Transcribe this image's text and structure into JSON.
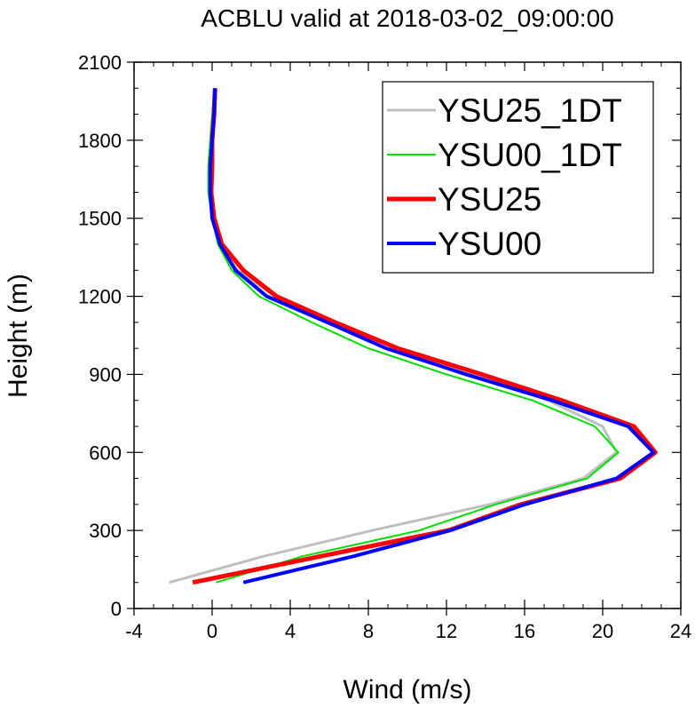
{
  "chart_data": {
    "type": "line",
    "title": "ACBLU valid at 2018-03-02_09:00:00",
    "xlabel": "Wind (m/s)",
    "ylabel": "Height (m)",
    "xlim": [
      -4,
      24
    ],
    "ylim": [
      0,
      2100
    ],
    "xticks": [
      -4,
      0,
      4,
      8,
      12,
      16,
      20,
      24
    ],
    "yticks": [
      0,
      300,
      600,
      900,
      1200,
      1500,
      1800,
      2100
    ],
    "xtick_labels": [
      "-4",
      "0",
      "4",
      "8",
      "12",
      "16",
      "20",
      "24"
    ],
    "ytick_labels": [
      "0",
      "300",
      "600",
      "900",
      "1200",
      "1500",
      "1800",
      "2100"
    ],
    "grid": false,
    "legend_position": "top-right",
    "series": [
      {
        "name": "YSU25_1DT",
        "color": "#bfbfbf",
        "width": 3,
        "points": [
          [
            -2.2,
            100
          ],
          [
            2.6,
            200
          ],
          [
            8.2,
            300
          ],
          [
            14.2,
            400
          ],
          [
            19.0,
            500
          ],
          [
            20.7,
            600
          ],
          [
            20.0,
            700
          ],
          [
            17.2,
            800
          ],
          [
            13.5,
            900
          ],
          [
            9.5,
            1000
          ],
          [
            6.3,
            1100
          ],
          [
            3.2,
            1200
          ],
          [
            1.3,
            1300
          ],
          [
            0.4,
            1400
          ],
          [
            0.0,
            1500
          ],
          [
            -0.1,
            1600
          ],
          [
            -0.1,
            1700
          ],
          [
            0.0,
            1800
          ],
          [
            0.05,
            1900
          ],
          [
            0.1,
            2000
          ]
        ]
      },
      {
        "name": "YSU00_1DT",
        "color": "#00e000",
        "width": 2,
        "points": [
          [
            0.2,
            100
          ],
          [
            4.6,
            200
          ],
          [
            10.6,
            300
          ],
          [
            14.5,
            400
          ],
          [
            19.2,
            500
          ],
          [
            20.8,
            600
          ],
          [
            19.6,
            700
          ],
          [
            16.4,
            800
          ],
          [
            12.0,
            900
          ],
          [
            8.0,
            1000
          ],
          [
            5.1,
            1100
          ],
          [
            2.4,
            1200
          ],
          [
            1.0,
            1300
          ],
          [
            0.3,
            1400
          ],
          [
            0.0,
            1500
          ],
          [
            -0.2,
            1600
          ],
          [
            -0.2,
            1700
          ],
          [
            -0.1,
            1800
          ],
          [
            0.0,
            1900
          ],
          [
            0.1,
            2000
          ]
        ]
      },
      {
        "name": "YSU25",
        "color": "#ff0000",
        "width": 5,
        "points": [
          [
            -1.0,
            100
          ],
          [
            5.5,
            200
          ],
          [
            12.1,
            300
          ],
          [
            15.8,
            400
          ],
          [
            20.9,
            500
          ],
          [
            22.7,
            600
          ],
          [
            21.6,
            700
          ],
          [
            17.9,
            800
          ],
          [
            13.8,
            900
          ],
          [
            9.5,
            1000
          ],
          [
            6.3,
            1100
          ],
          [
            3.3,
            1200
          ],
          [
            1.6,
            1300
          ],
          [
            0.5,
            1400
          ],
          [
            0.1,
            1500
          ],
          [
            -0.05,
            1600
          ],
          [
            0.0,
            1700
          ],
          [
            0.0,
            1800
          ],
          [
            0.1,
            1900
          ],
          [
            0.15,
            2000
          ]
        ]
      },
      {
        "name": "YSU00",
        "color": "#0000ff",
        "width": 4,
        "points": [
          [
            1.6,
            100
          ],
          [
            7.2,
            200
          ],
          [
            12.2,
            300
          ],
          [
            16.0,
            400
          ],
          [
            20.7,
            500
          ],
          [
            22.6,
            600
          ],
          [
            21.3,
            700
          ],
          [
            17.4,
            800
          ],
          [
            13.0,
            900
          ],
          [
            8.9,
            1000
          ],
          [
            5.9,
            1100
          ],
          [
            2.8,
            1200
          ],
          [
            1.2,
            1300
          ],
          [
            0.4,
            1400
          ],
          [
            0.0,
            1500
          ],
          [
            -0.1,
            1600
          ],
          [
            -0.1,
            1700
          ],
          [
            0.0,
            1800
          ],
          [
            0.1,
            1900
          ],
          [
            0.15,
            2000
          ]
        ]
      }
    ]
  }
}
